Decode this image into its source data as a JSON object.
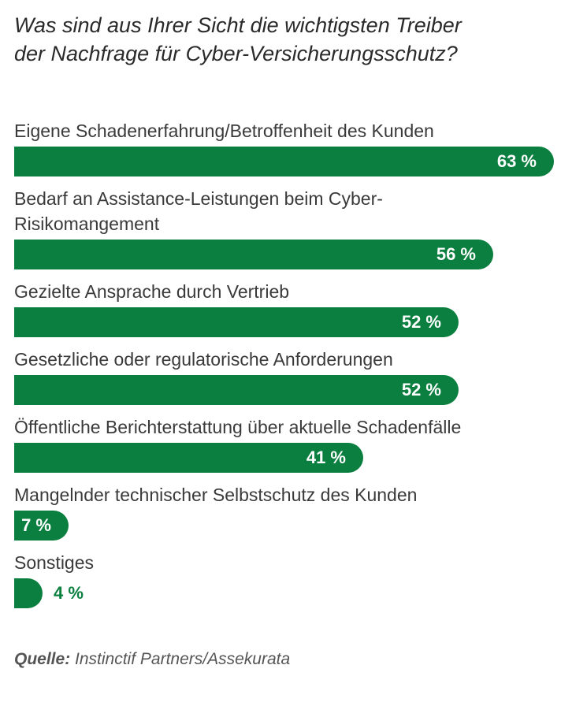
{
  "chart_data": {
    "type": "bar",
    "orientation": "horizontal",
    "title": "Was sind aus Ihrer Sicht die wichtigsten Treiber der Nachfrage für Cyber-Versicherungsschutz?",
    "title_lines": [
      "Was sind aus Ihrer Sicht die wichtigsten Treiber",
      "der Nachfrage für Cyber-Versicherungsschutz?"
    ],
    "categories": [
      "Eigene Schadenerfahrung/Betroffenheit des Kunden",
      "Bedarf an Assistance-Leistungen beim Cyber-Risikomangement",
      "Gezielte Ansprache durch Vertrieb",
      "Gesetzliche oder regulatorische Anforderungen",
      "Öffentliche Berichterstattung über aktuelle Schadenfälle",
      "Mangelnder technischer Selbstschutz des Kunden",
      "Sonstiges"
    ],
    "label_lines": [
      [
        "Eigene Schadenerfahrung/Betroffenheit des Kunden"
      ],
      [
        "Bedarf an Assistance-Leistungen beim Cyber-",
        "Risikomangement"
      ],
      [
        "Gezielte Ansprache durch Vertrieb"
      ],
      [
        "Gesetzliche oder regulatorische Anforderungen"
      ],
      [
        "Öffentliche Berichterstattung über aktuelle Schadenfälle"
      ],
      [
        "Mangelnder technischer Selbstschutz des Kunden"
      ],
      [
        "Sonstiges"
      ]
    ],
    "values": [
      63,
      56,
      52,
      52,
      41,
      7,
      4
    ],
    "value_labels": [
      "63 %",
      "56 %",
      "52 %",
      "52 %",
      "41 %",
      "7 %",
      "4 %"
    ],
    "unit": "%",
    "xlim": [
      0,
      100
    ],
    "bar_color": "#0a7f3f",
    "source_label": "Quelle:",
    "source_text": "Instinctif Partners/Assekurata"
  }
}
